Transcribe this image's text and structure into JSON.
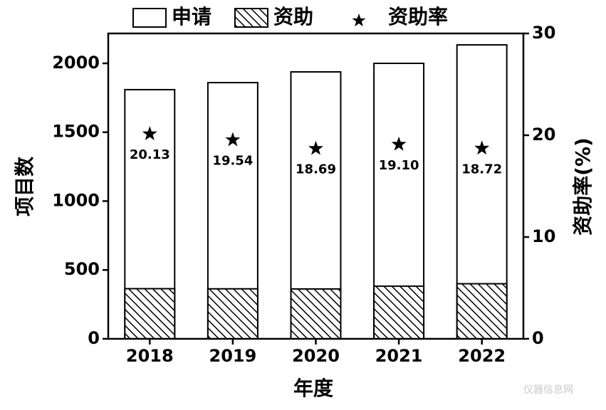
{
  "chart_data": {
    "type": "bar",
    "bar_mode": "overlay",
    "x_label": "年度",
    "y_label": "项目数",
    "y2_label": "资助率(%)",
    "categories": [
      "2018",
      "2019",
      "2020",
      "2021",
      "2022"
    ],
    "series": [
      {
        "name": "申请",
        "color": "#ffffff",
        "values": [
          1809,
          1860,
          1938,
          2000,
          2134
        ]
      },
      {
        "name": "资助",
        "color": "#000000",
        "pattern": "hatch",
        "values": [
          364,
          363,
          362,
          382,
          400
        ]
      },
      {
        "name": "资助率",
        "type": "scatter",
        "marker": "star",
        "axis": "y2",
        "color": "#000000",
        "values": [
          20.13,
          19.54,
          18.69,
          19.1,
          18.72
        ],
        "value_labels": [
          "20.13",
          "19.54",
          "18.69",
          "19.10",
          "18.72"
        ]
      }
    ],
    "ylim": [
      0,
      2217
    ],
    "yticks": [
      0,
      500,
      1000,
      1500,
      2000
    ],
    "y2lim": [
      0,
      30
    ],
    "y2ticks": [
      0,
      10,
      20,
      30
    ],
    "legend": "top",
    "grid": false
  },
  "watermark": "仪器信息网"
}
